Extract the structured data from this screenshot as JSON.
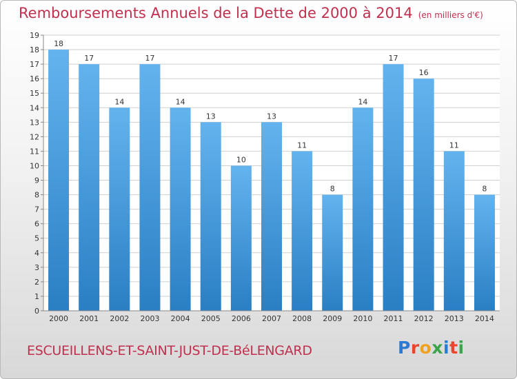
{
  "header": {
    "title": "Remboursements Annuels de la Dette de 2000 à 2014",
    "unit": "(en milliers d'€)"
  },
  "footer": {
    "town": "ESCUEILLENS-ET-SAINT-JUST-DE-BéLENGARD",
    "logo": "Proxiti",
    "logo_colors": [
      "#2a7bd6",
      "#e8452c",
      "#f0a21f",
      "#3aa54a",
      "#2a7bd6",
      "#e8452c",
      "#3aa54a"
    ]
  },
  "chart_data": {
    "type": "bar",
    "categories": [
      "2000",
      "2001",
      "2002",
      "2003",
      "2004",
      "2005",
      "2006",
      "2007",
      "2008",
      "2009",
      "2010",
      "2011",
      "2012",
      "2013",
      "2014"
    ],
    "values": [
      18,
      17,
      14,
      17,
      14,
      13,
      10,
      13,
      11,
      8,
      14,
      17,
      16,
      11,
      8
    ],
    "ylim": [
      0,
      19
    ],
    "yticks": [
      0,
      1,
      2,
      3,
      4,
      5,
      6,
      7,
      8,
      9,
      10,
      11,
      12,
      13,
      14,
      15,
      16,
      17,
      18,
      19
    ],
    "grid": true,
    "colors": {
      "bar_light": "#63b3ee",
      "bar_dark": "#2a7fc4",
      "grid": "#cfcfcf",
      "text": "#333333"
    }
  }
}
